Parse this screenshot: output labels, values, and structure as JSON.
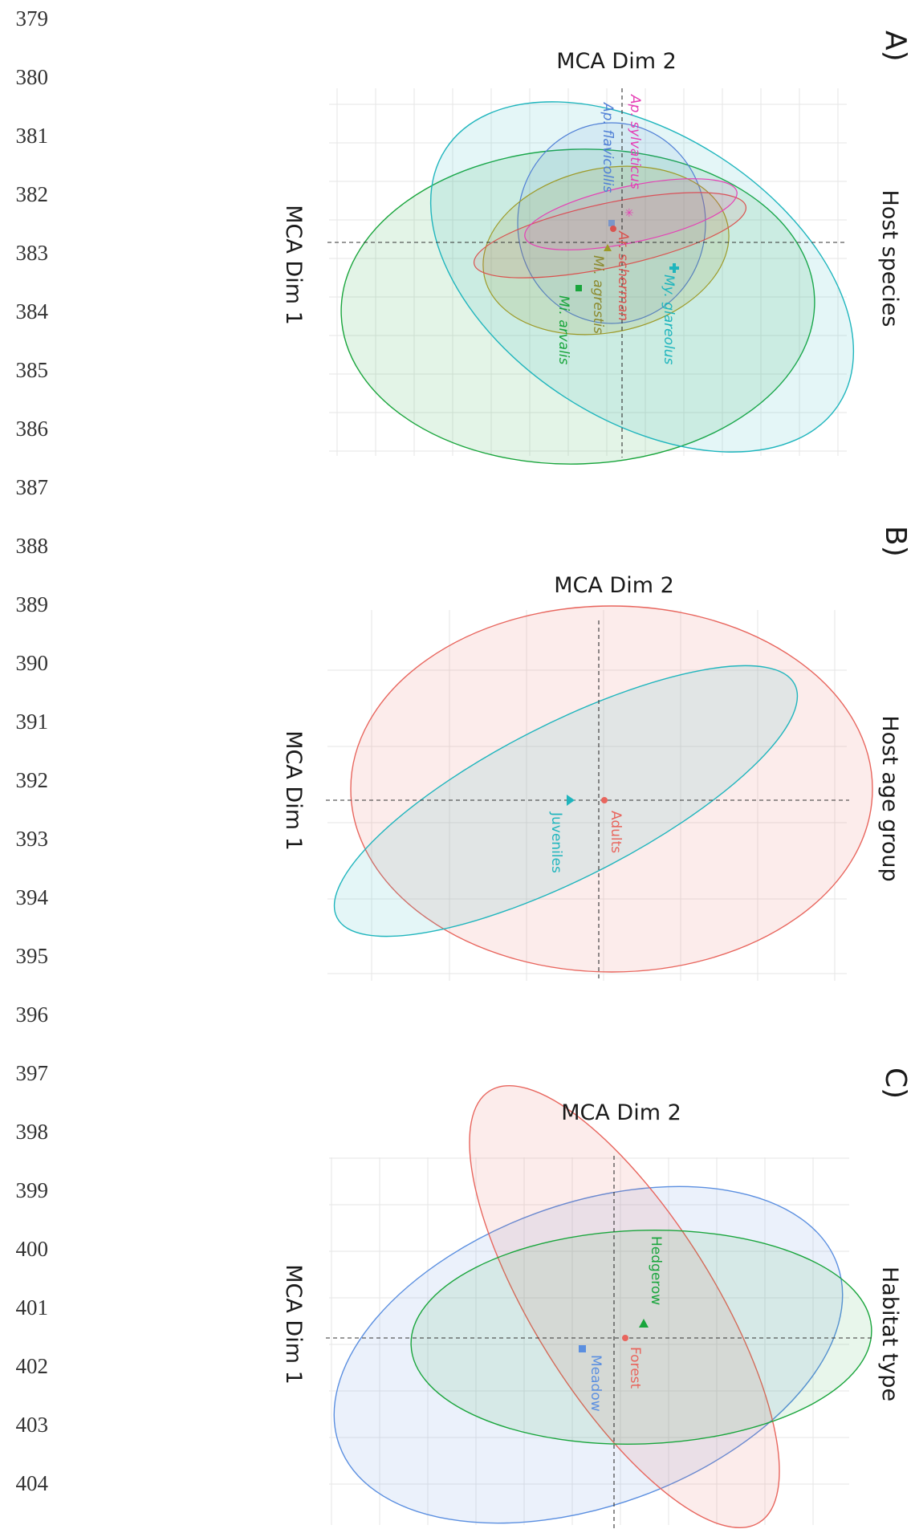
{
  "line_numbers": [
    "379",
    "380",
    "381",
    "382",
    "383",
    "384",
    "385",
    "386",
    "387",
    "388",
    "389",
    "390",
    "391",
    "392",
    "393",
    "394",
    "395",
    "396",
    "397",
    "398",
    "399",
    "400",
    "401",
    "402",
    "403",
    "404"
  ],
  "panels": [
    {
      "letter": "A)",
      "top_title": "MCA Dim 2",
      "left_title": "MCA Dim 1",
      "right_title": "Host species",
      "groups": [
        {
          "label": "Ap. sylvaticus",
          "color": "#e53fb5"
        },
        {
          "label": "Ap. flavicollis",
          "color": "#4f7fd6"
        },
        {
          "label": "Ar. scherman",
          "color": "#d9534f"
        },
        {
          "label": "Mi. agrestis",
          "color": "#8c8a2e"
        },
        {
          "label": "Mi. arvalis",
          "color": "#19a53c"
        },
        {
          "label": "My. glareolus",
          "color": "#1fb5bd"
        }
      ]
    },
    {
      "letter": "B)",
      "top_title": "MCA Dim 2",
      "left_title": "MCA Dim 1",
      "right_title": "Host age group",
      "groups": [
        {
          "label": "Adults",
          "color": "#e8655d"
        },
        {
          "label": "Juveniles",
          "color": "#1fb5bd"
        }
      ]
    },
    {
      "letter": "C)",
      "top_title": "MCA Dim 2",
      "left_title": "MCA Dim 1",
      "right_title": "Habitat type",
      "groups": [
        {
          "label": "Hedgerow",
          "color": "#19a53c"
        },
        {
          "label": "Forest",
          "color": "#e8655d"
        },
        {
          "label": "Meadow",
          "color": "#5b8fe0"
        }
      ]
    }
  ]
}
